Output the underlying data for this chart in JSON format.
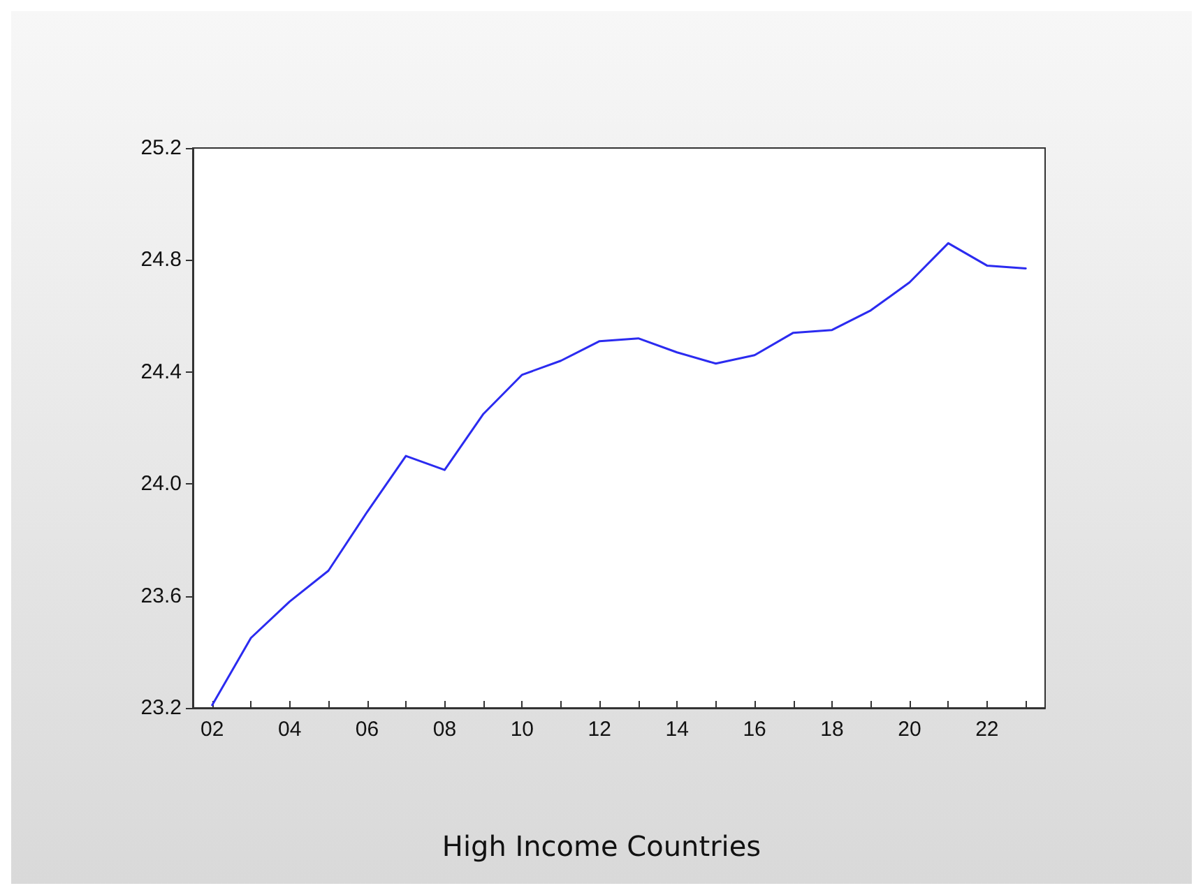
{
  "chart_data": {
    "type": "line",
    "title": "High Income Countries",
    "categories": [
      "02",
      null,
      "04",
      null,
      "06",
      null,
      "08",
      null,
      "10",
      null,
      "12",
      null,
      "14",
      null,
      "16",
      null,
      "18",
      null,
      "20",
      null,
      "22",
      null
    ],
    "series": [
      {
        "color": "#2b2bf0",
        "values": [
          23.21,
          23.45,
          23.58,
          23.69,
          23.9,
          24.1,
          24.05,
          24.25,
          24.39,
          24.44,
          24.51,
          24.52,
          24.47,
          24.43,
          24.46,
          24.54,
          24.55,
          24.62,
          24.72,
          24.86,
          24.78,
          24.77
        ]
      }
    ],
    "ylim": [
      23.2,
      25.2
    ],
    "yticks": [
      23.2,
      23.6,
      {
        "value": 24,
        "label": "24.0"
      },
      24.4,
      24.8,
      25.2
    ],
    "grid": false,
    "marker": "none",
    "line_style": "solid"
  }
}
